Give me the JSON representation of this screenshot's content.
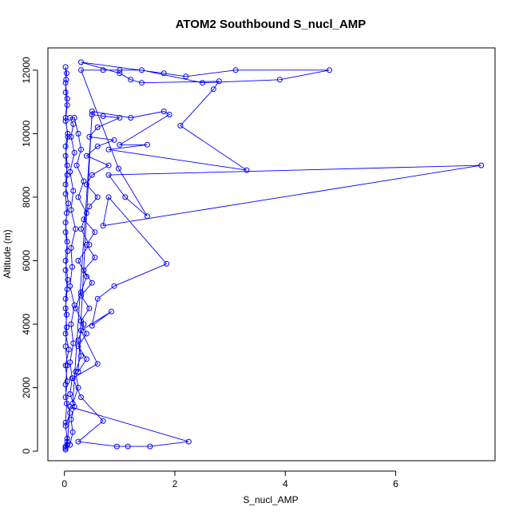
{
  "chart_data": {
    "type": "scatter",
    "title": "ATOM2 Southbound S_nucl_AMP",
    "xlabel": "S_nucl_AMP",
    "ylabel": "Altitude (m)",
    "xlim": [
      -0.3,
      7.8
    ],
    "ylim": [
      -300,
      12700
    ],
    "xticks": [
      0,
      2,
      4,
      6
    ],
    "yticks": [
      0,
      2000,
      4000,
      6000,
      8000,
      10000,
      12000
    ],
    "grid": false,
    "series_color": "#0000ff",
    "series": [
      {
        "style": "line+points",
        "points": [
          [
            0.02,
            150
          ],
          [
            0.05,
            400
          ],
          [
            0.02,
            800
          ],
          [
            0.1,
            1200
          ],
          [
            0.02,
            1700
          ],
          [
            0.05,
            2200
          ],
          [
            0.02,
            2700
          ],
          [
            0.08,
            3200
          ],
          [
            0.02,
            3700
          ],
          [
            0.04,
            4300
          ],
          [
            0.02,
            4800
          ],
          [
            0.06,
            5400
          ],
          [
            0.02,
            6000
          ],
          [
            0.05,
            6600
          ],
          [
            0.02,
            7200
          ],
          [
            0.07,
            7800
          ],
          [
            0.02,
            8400
          ],
          [
            0.05,
            9000
          ],
          [
            0.02,
            9600
          ],
          [
            0.06,
            10000
          ],
          [
            0.02,
            10400
          ],
          [
            0.05,
            10900
          ],
          [
            0.02,
            11300
          ],
          [
            0.03,
            11700
          ],
          [
            0.02,
            12100
          ],
          [
            0.04,
            11900
          ],
          [
            0.02,
            11600
          ],
          [
            0.05,
            11100
          ],
          [
            0.02,
            10500
          ],
          [
            0.06,
            9900
          ],
          [
            0.02,
            9300
          ],
          [
            0.05,
            8700
          ],
          [
            0.02,
            8100
          ],
          [
            0.04,
            7500
          ],
          [
            0.02,
            6900
          ],
          [
            0.06,
            6300
          ],
          [
            0.02,
            5700
          ],
          [
            0.05,
            5100
          ],
          [
            0.02,
            4500
          ],
          [
            0.04,
            3900
          ],
          [
            0.02,
            3300
          ],
          [
            0.05,
            2700
          ],
          [
            0.02,
            2100
          ],
          [
            0.04,
            1500
          ],
          [
            0.02,
            900
          ],
          [
            0.05,
            300
          ],
          [
            0.02,
            100
          ],
          [
            0.1,
            200
          ],
          [
            0.15,
            600
          ],
          [
            0.12,
            1000
          ],
          [
            0.18,
            1400
          ],
          [
            0.1,
            1800
          ],
          [
            0.14,
            2300
          ],
          [
            0.1,
            2800
          ],
          [
            0.16,
            3400
          ],
          [
            0.12,
            4000
          ],
          [
            0.18,
            4600
          ],
          [
            0.1,
            5200
          ],
          [
            0.14,
            5800
          ],
          [
            0.12,
            6400
          ],
          [
            0.2,
            7000
          ],
          [
            0.12,
            7600
          ],
          [
            0.16,
            8200
          ],
          [
            0.1,
            8800
          ],
          [
            0.18,
            9400
          ],
          [
            0.12,
            9900
          ],
          [
            0.16,
            10300
          ],
          [
            0.1,
            10500
          ],
          [
            0.18,
            10500
          ],
          [
            0.25,
            10000
          ],
          [
            0.3,
            9500
          ],
          [
            0.22,
            9000
          ],
          [
            0.35,
            8500
          ],
          [
            0.25,
            8000
          ],
          [
            0.4,
            7500
          ],
          [
            0.3,
            7000
          ],
          [
            0.45,
            6500
          ],
          [
            0.25,
            6000
          ],
          [
            0.4,
            5500
          ],
          [
            0.3,
            5000
          ],
          [
            0.2,
            4500
          ],
          [
            0.35,
            4000
          ],
          [
            0.25,
            3500
          ],
          [
            0.3,
            3000
          ],
          [
            0.2,
            2500
          ],
          [
            0.25,
            2000
          ],
          [
            0.15,
            1500
          ],
          [
            0.5,
            10600
          ],
          [
            0.7,
            10550
          ],
          [
            1.0,
            10500
          ],
          [
            0.6,
            10200
          ],
          [
            0.45,
            9900
          ],
          [
            0.9,
            9800
          ],
          [
            0.6,
            9600
          ],
          [
            0.4,
            9300
          ],
          [
            0.8,
            9000
          ],
          [
            0.5,
            8700
          ],
          [
            0.4,
            8400
          ],
          [
            0.6,
            8000
          ],
          [
            0.45,
            7700
          ],
          [
            0.35,
            7300
          ],
          [
            0.55,
            6900
          ],
          [
            0.4,
            6500
          ],
          [
            0.55,
            6100
          ],
          [
            0.35,
            5700
          ],
          [
            0.5,
            5300
          ],
          [
            0.3,
            4900
          ],
          [
            0.45,
            4500
          ],
          [
            0.3,
            4100
          ],
          [
            0.4,
            3700
          ],
          [
            0.25,
            3300
          ],
          [
            0.4,
            2900
          ],
          [
            0.25,
            2500
          ],
          [
            0.5,
            10700
          ],
          [
            1.2,
            10500
          ],
          [
            1.8,
            10700
          ],
          [
            1.9,
            10600
          ],
          [
            1.0,
            9650
          ],
          [
            1.5,
            9650
          ],
          [
            0.8,
            9500
          ],
          [
            3.3,
            8850
          ],
          [
            2.1,
            10250
          ],
          [
            2.7,
            11400
          ],
          [
            2.8,
            11650
          ],
          [
            1.4,
            11600
          ],
          [
            1.2,
            11700
          ],
          [
            1.0,
            11900
          ],
          [
            0.3,
            12250
          ],
          [
            1.8,
            11900
          ],
          [
            2.2,
            11800
          ],
          [
            3.1,
            12000
          ],
          [
            4.8,
            12000
          ],
          [
            3.9,
            11700
          ],
          [
            2.5,
            11600
          ],
          [
            1.4,
            12000
          ],
          [
            1.0,
            12000
          ],
          [
            0.7,
            12000
          ],
          [
            0.3,
            12000
          ],
          [
            0.98,
            8900
          ],
          [
            1.5,
            7400
          ],
          [
            1.1,
            8000
          ],
          [
            0.8,
            8700
          ],
          [
            7.55,
            9000
          ],
          [
            0.7,
            7100
          ],
          [
            0.8,
            8000
          ],
          [
            1.85,
            5900
          ],
          [
            0.9,
            5200
          ],
          [
            0.6,
            4800
          ],
          [
            0.5,
            3950
          ],
          [
            0.85,
            4400
          ],
          [
            0.3,
            3800
          ],
          [
            0.6,
            2750
          ],
          [
            0.15,
            2300
          ],
          [
            0.3,
            1700
          ],
          [
            0.7,
            950
          ],
          [
            0.25,
            300
          ],
          [
            0.95,
            150
          ],
          [
            1.15,
            150
          ],
          [
            1.55,
            150
          ],
          [
            2.25,
            300
          ],
          [
            0.1,
            1400
          ],
          [
            0.05,
            200
          ],
          [
            0.02,
            50
          ]
        ]
      }
    ]
  }
}
